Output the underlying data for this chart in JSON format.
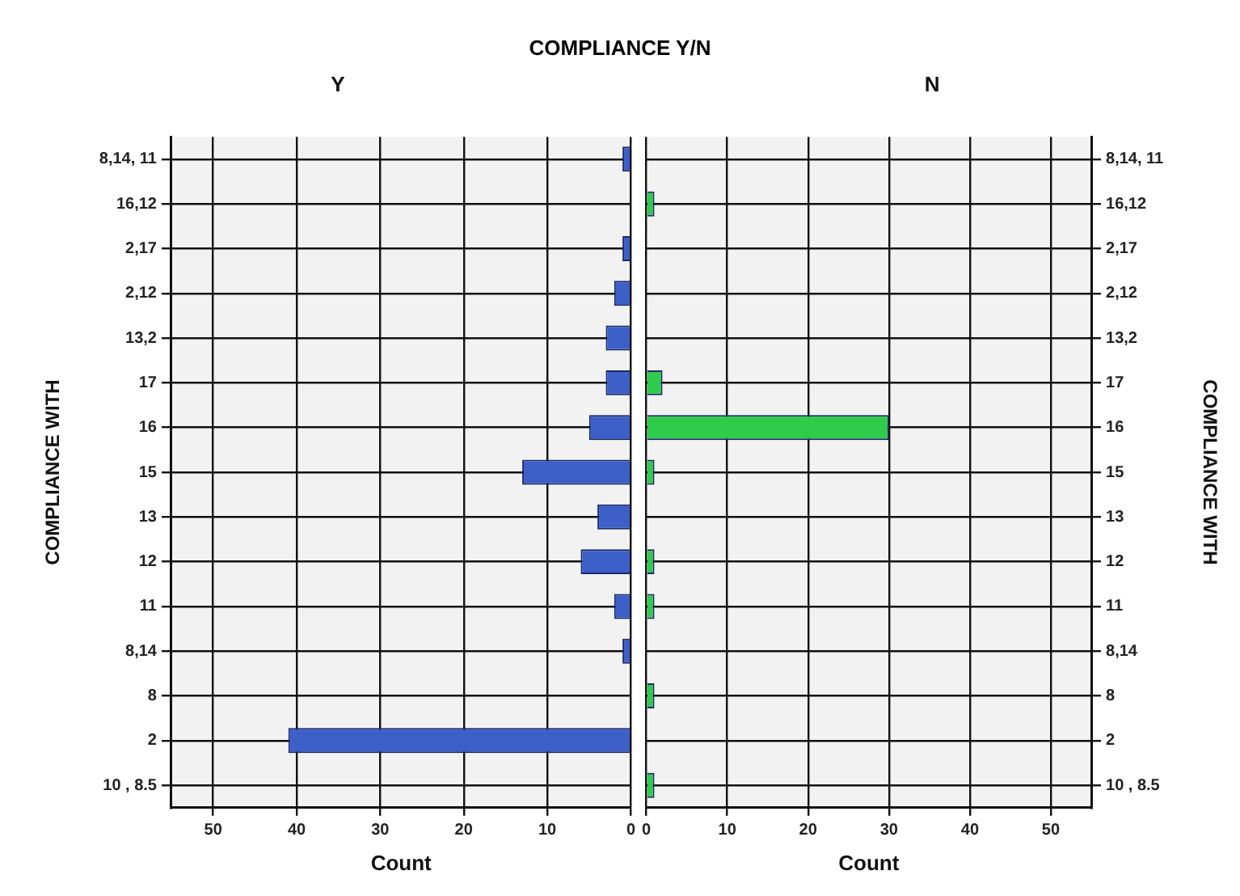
{
  "chart_data": [
    {
      "type": "bar",
      "orientation": "horizontal",
      "title": "COMPLIANCE Y/N",
      "subtitle": "Y",
      "xlabel": "Count",
      "ylabel": "COMPLIANCE WITH",
      "categories": [
        "8,14, 11",
        "16,12",
        "2,17",
        "2,12",
        "13,2",
        "17",
        "16",
        "15",
        "13",
        "12",
        "11",
        "8,14",
        "8",
        "2",
        "10 , 8.5"
      ],
      "values": [
        1,
        0,
        1,
        2,
        3,
        3,
        5,
        13,
        4,
        6,
        2,
        1,
        0,
        41,
        0
      ],
      "color": "#3d5fc8",
      "xlim": [
        55,
        0
      ],
      "xticks": [
        50,
        40,
        30,
        20,
        10,
        0
      ],
      "grid": true
    },
    {
      "type": "bar",
      "orientation": "horizontal",
      "subtitle": "N",
      "xlabel": "Count",
      "ylabel": "COMPLIANCE WITH",
      "categories": [
        "8,14, 11",
        "16,12",
        "2,17",
        "2,12",
        "13,2",
        "17",
        "16",
        "15",
        "13",
        "12",
        "11",
        "8,14",
        "8",
        "2",
        "10 , 8.5"
      ],
      "values": [
        0,
        1,
        0,
        0,
        0,
        2,
        30,
        1,
        0,
        1,
        1,
        0,
        1,
        0,
        1
      ],
      "color": "#2ecc4a",
      "xlim": [
        0,
        55
      ],
      "xticks": [
        0,
        10,
        20,
        30,
        40,
        50
      ],
      "grid": true
    }
  ]
}
